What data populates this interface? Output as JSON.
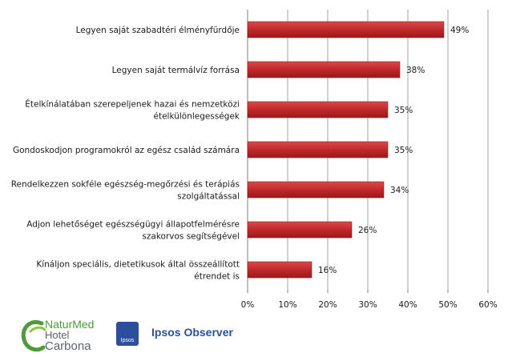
{
  "chart_data": {
    "type": "bar",
    "orientation": "horizontal",
    "categories": [
      [
        "Legyen saját szabadtéri élményfürdője"
      ],
      [
        "Legyen saját termálvíz forrása"
      ],
      [
        "Ételkínálatában szerepeljenek hazai és nemzetközi",
        "ételkülönlegességek"
      ],
      [
        "Gondoskodjon  programokról az egész család számára"
      ],
      [
        "Rendelkezzen sokféle egészség-megőrzési és terápiás",
        "szolgáltatással"
      ],
      [
        "Adjon lehetőséget egészségügyi állapotfelmérésre",
        "szakorvos segítségével"
      ],
      [
        "Kínáljon speciális, dietetikusok által összeállított",
        "étrendet is"
      ]
    ],
    "values": [
      49,
      38,
      35,
      35,
      34,
      26,
      16
    ],
    "data_labels": [
      "49%",
      "38%",
      "35%",
      "35%",
      "34%",
      "26%",
      "16%"
    ],
    "x_ticks": [
      "0%",
      "10%",
      "20%",
      "30%",
      "40%",
      "50%",
      "60%"
    ],
    "xlim": [
      0,
      60
    ],
    "grid": "vertical",
    "bar_color": "#c0292b"
  },
  "logos": {
    "naturmed": {
      "words": [
        "NaturMed",
        "Hotel",
        "Carbona"
      ],
      "colors": {
        "primary": "#4d9b3a",
        "text": "#5a6470"
      }
    },
    "ipsos": {
      "box_text": "Ipsos",
      "name": "Ipsos Observer",
      "color": "#2b4f9c"
    }
  }
}
